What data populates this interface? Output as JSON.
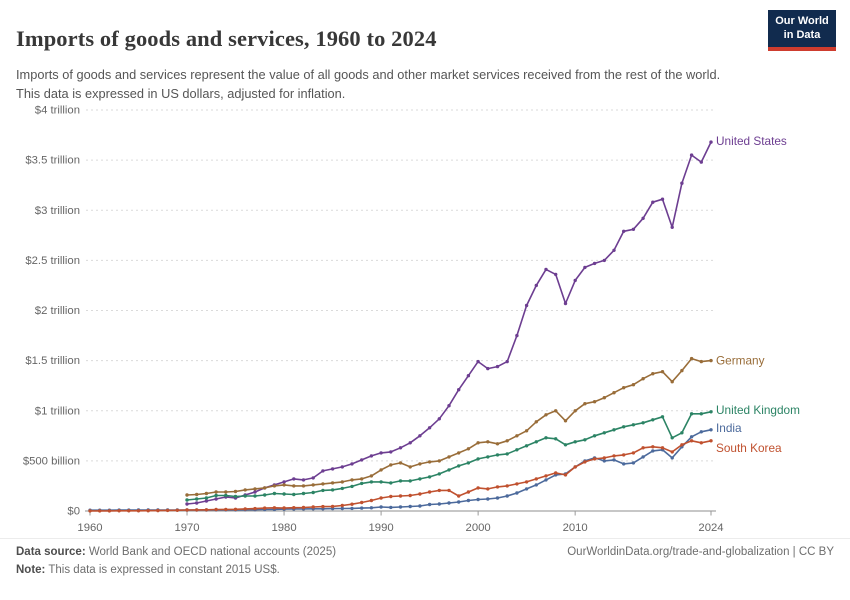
{
  "header": {
    "title": "Imports of goods and services, 1960 to 2024",
    "subtitle": "Imports of goods and services represent the value of all goods and other market services received from the rest of the world. This data is expressed in US dollars, adjusted for inflation.",
    "logo": {
      "line1": "Our World",
      "line2": "in Data",
      "bg_color": "#112B4E",
      "accent_color": "#CE3C2E"
    }
  },
  "footer": {
    "source_label": "Data source:",
    "source_value": " World Bank and OECD national accounts (2025)",
    "note_label": "Note:",
    "note_value": " This data is expressed in constant 2015 US$.",
    "link": "OurWorldinData.org/trade-and-globalization | CC BY"
  },
  "chart_data": {
    "type": "line",
    "title": "Imports of goods and services, 1960 to 2024",
    "xlabel": "",
    "ylabel": "Imports of goods and services (constant 2015 US$)",
    "x_range": [
      1960,
      2024
    ],
    "ylim": [
      0,
      4
    ],
    "unit": "trillion US$",
    "grid": "horizontal dashed",
    "legend_position": "line-end labels, right of plot",
    "x_ticks": [
      1960,
      1970,
      1980,
      1990,
      2000,
      2010,
      2024
    ],
    "y_ticks": [
      {
        "v": 0,
        "label": "$0"
      },
      {
        "v": 0.5,
        "label": "$500 billion"
      },
      {
        "v": 1,
        "label": "$1 trillion"
      },
      {
        "v": 1.5,
        "label": "$1.5 trillion"
      },
      {
        "v": 2,
        "label": "$2 trillion"
      },
      {
        "v": 2.5,
        "label": "$2.5 trillion"
      },
      {
        "v": 3,
        "label": "$3 trillion"
      },
      {
        "v": 3.5,
        "label": "$3.5 trillion"
      },
      {
        "v": 4,
        "label": "$4 trillion"
      }
    ],
    "series": [
      {
        "name": "United States",
        "color": "#6D3E91",
        "start_year": 1970,
        "label_dy": -1,
        "values": [
          0.07,
          0.08,
          0.1,
          0.12,
          0.14,
          0.13,
          0.16,
          0.19,
          0.23,
          0.26,
          0.29,
          0.32,
          0.31,
          0.33,
          0.4,
          0.42,
          0.44,
          0.47,
          0.51,
          0.55,
          0.58,
          0.59,
          0.63,
          0.68,
          0.75,
          0.83,
          0.92,
          1.05,
          1.21,
          1.35,
          1.49,
          1.42,
          1.44,
          1.49,
          1.75,
          2.05,
          2.25,
          2.41,
          2.36,
          2.07,
          2.3,
          2.43,
          2.47,
          2.5,
          2.6,
          2.79,
          2.81,
          2.92,
          3.08,
          3.11,
          2.83,
          3.27,
          3.55,
          3.48,
          3.68
        ]
      },
      {
        "name": "Germany",
        "color": "#996D39",
        "start_year": 1970,
        "label_dy": 0,
        "values": [
          0.16,
          0.165,
          0.175,
          0.19,
          0.19,
          0.195,
          0.21,
          0.22,
          0.23,
          0.25,
          0.26,
          0.25,
          0.25,
          0.26,
          0.27,
          0.28,
          0.29,
          0.31,
          0.32,
          0.35,
          0.41,
          0.46,
          0.48,
          0.44,
          0.47,
          0.49,
          0.5,
          0.54,
          0.58,
          0.62,
          0.68,
          0.69,
          0.67,
          0.7,
          0.75,
          0.8,
          0.89,
          0.96,
          1.0,
          0.9,
          1.0,
          1.07,
          1.09,
          1.13,
          1.18,
          1.23,
          1.26,
          1.32,
          1.37,
          1.39,
          1.29,
          1.4,
          1.52,
          1.49,
          1.5
        ]
      },
      {
        "name": "United Kingdom",
        "color": "#2C8465",
        "start_year": 1970,
        "label_dy": -2,
        "values": [
          0.11,
          0.12,
          0.13,
          0.155,
          0.155,
          0.145,
          0.15,
          0.15,
          0.16,
          0.175,
          0.17,
          0.165,
          0.175,
          0.185,
          0.205,
          0.21,
          0.225,
          0.245,
          0.275,
          0.29,
          0.29,
          0.28,
          0.3,
          0.3,
          0.32,
          0.34,
          0.37,
          0.41,
          0.45,
          0.48,
          0.52,
          0.54,
          0.56,
          0.57,
          0.61,
          0.65,
          0.69,
          0.73,
          0.72,
          0.66,
          0.69,
          0.71,
          0.75,
          0.78,
          0.81,
          0.84,
          0.86,
          0.88,
          0.91,
          0.94,
          0.73,
          0.78,
          0.97,
          0.97,
          0.99
        ]
      },
      {
        "name": "India",
        "color": "#4C6A9C",
        "start_year": 1960,
        "label_dy": -2,
        "values": [
          0.008,
          0.008,
          0.008,
          0.009,
          0.009,
          0.01,
          0.01,
          0.01,
          0.01,
          0.01,
          0.01,
          0.01,
          0.01,
          0.011,
          0.011,
          0.011,
          0.012,
          0.013,
          0.015,
          0.016,
          0.019,
          0.02,
          0.021,
          0.022,
          0.022,
          0.024,
          0.025,
          0.026,
          0.029,
          0.032,
          0.04,
          0.036,
          0.04,
          0.045,
          0.05,
          0.065,
          0.07,
          0.08,
          0.09,
          0.105,
          0.115,
          0.12,
          0.13,
          0.15,
          0.18,
          0.22,
          0.26,
          0.31,
          0.36,
          0.37,
          0.44,
          0.5,
          0.53,
          0.5,
          0.51,
          0.47,
          0.48,
          0.54,
          0.6,
          0.61,
          0.53,
          0.64,
          0.74,
          0.79,
          0.81
        ]
      },
      {
        "name": "South Korea",
        "color": "#C0512F",
        "start_year": 1960,
        "label_dy": 7,
        "values": [
          0.001,
          0.001,
          0.001,
          0.002,
          0.002,
          0.002,
          0.003,
          0.004,
          0.006,
          0.007,
          0.01,
          0.011,
          0.012,
          0.015,
          0.016,
          0.017,
          0.021,
          0.024,
          0.029,
          0.032,
          0.03,
          0.033,
          0.035,
          0.04,
          0.044,
          0.046,
          0.055,
          0.068,
          0.085,
          0.105,
          0.13,
          0.145,
          0.15,
          0.155,
          0.17,
          0.19,
          0.205,
          0.205,
          0.15,
          0.19,
          0.23,
          0.22,
          0.24,
          0.25,
          0.27,
          0.29,
          0.32,
          0.35,
          0.38,
          0.36,
          0.44,
          0.49,
          0.52,
          0.53,
          0.55,
          0.56,
          0.58,
          0.63,
          0.64,
          0.63,
          0.59,
          0.66,
          0.7,
          0.68,
          0.7
        ]
      }
    ]
  }
}
